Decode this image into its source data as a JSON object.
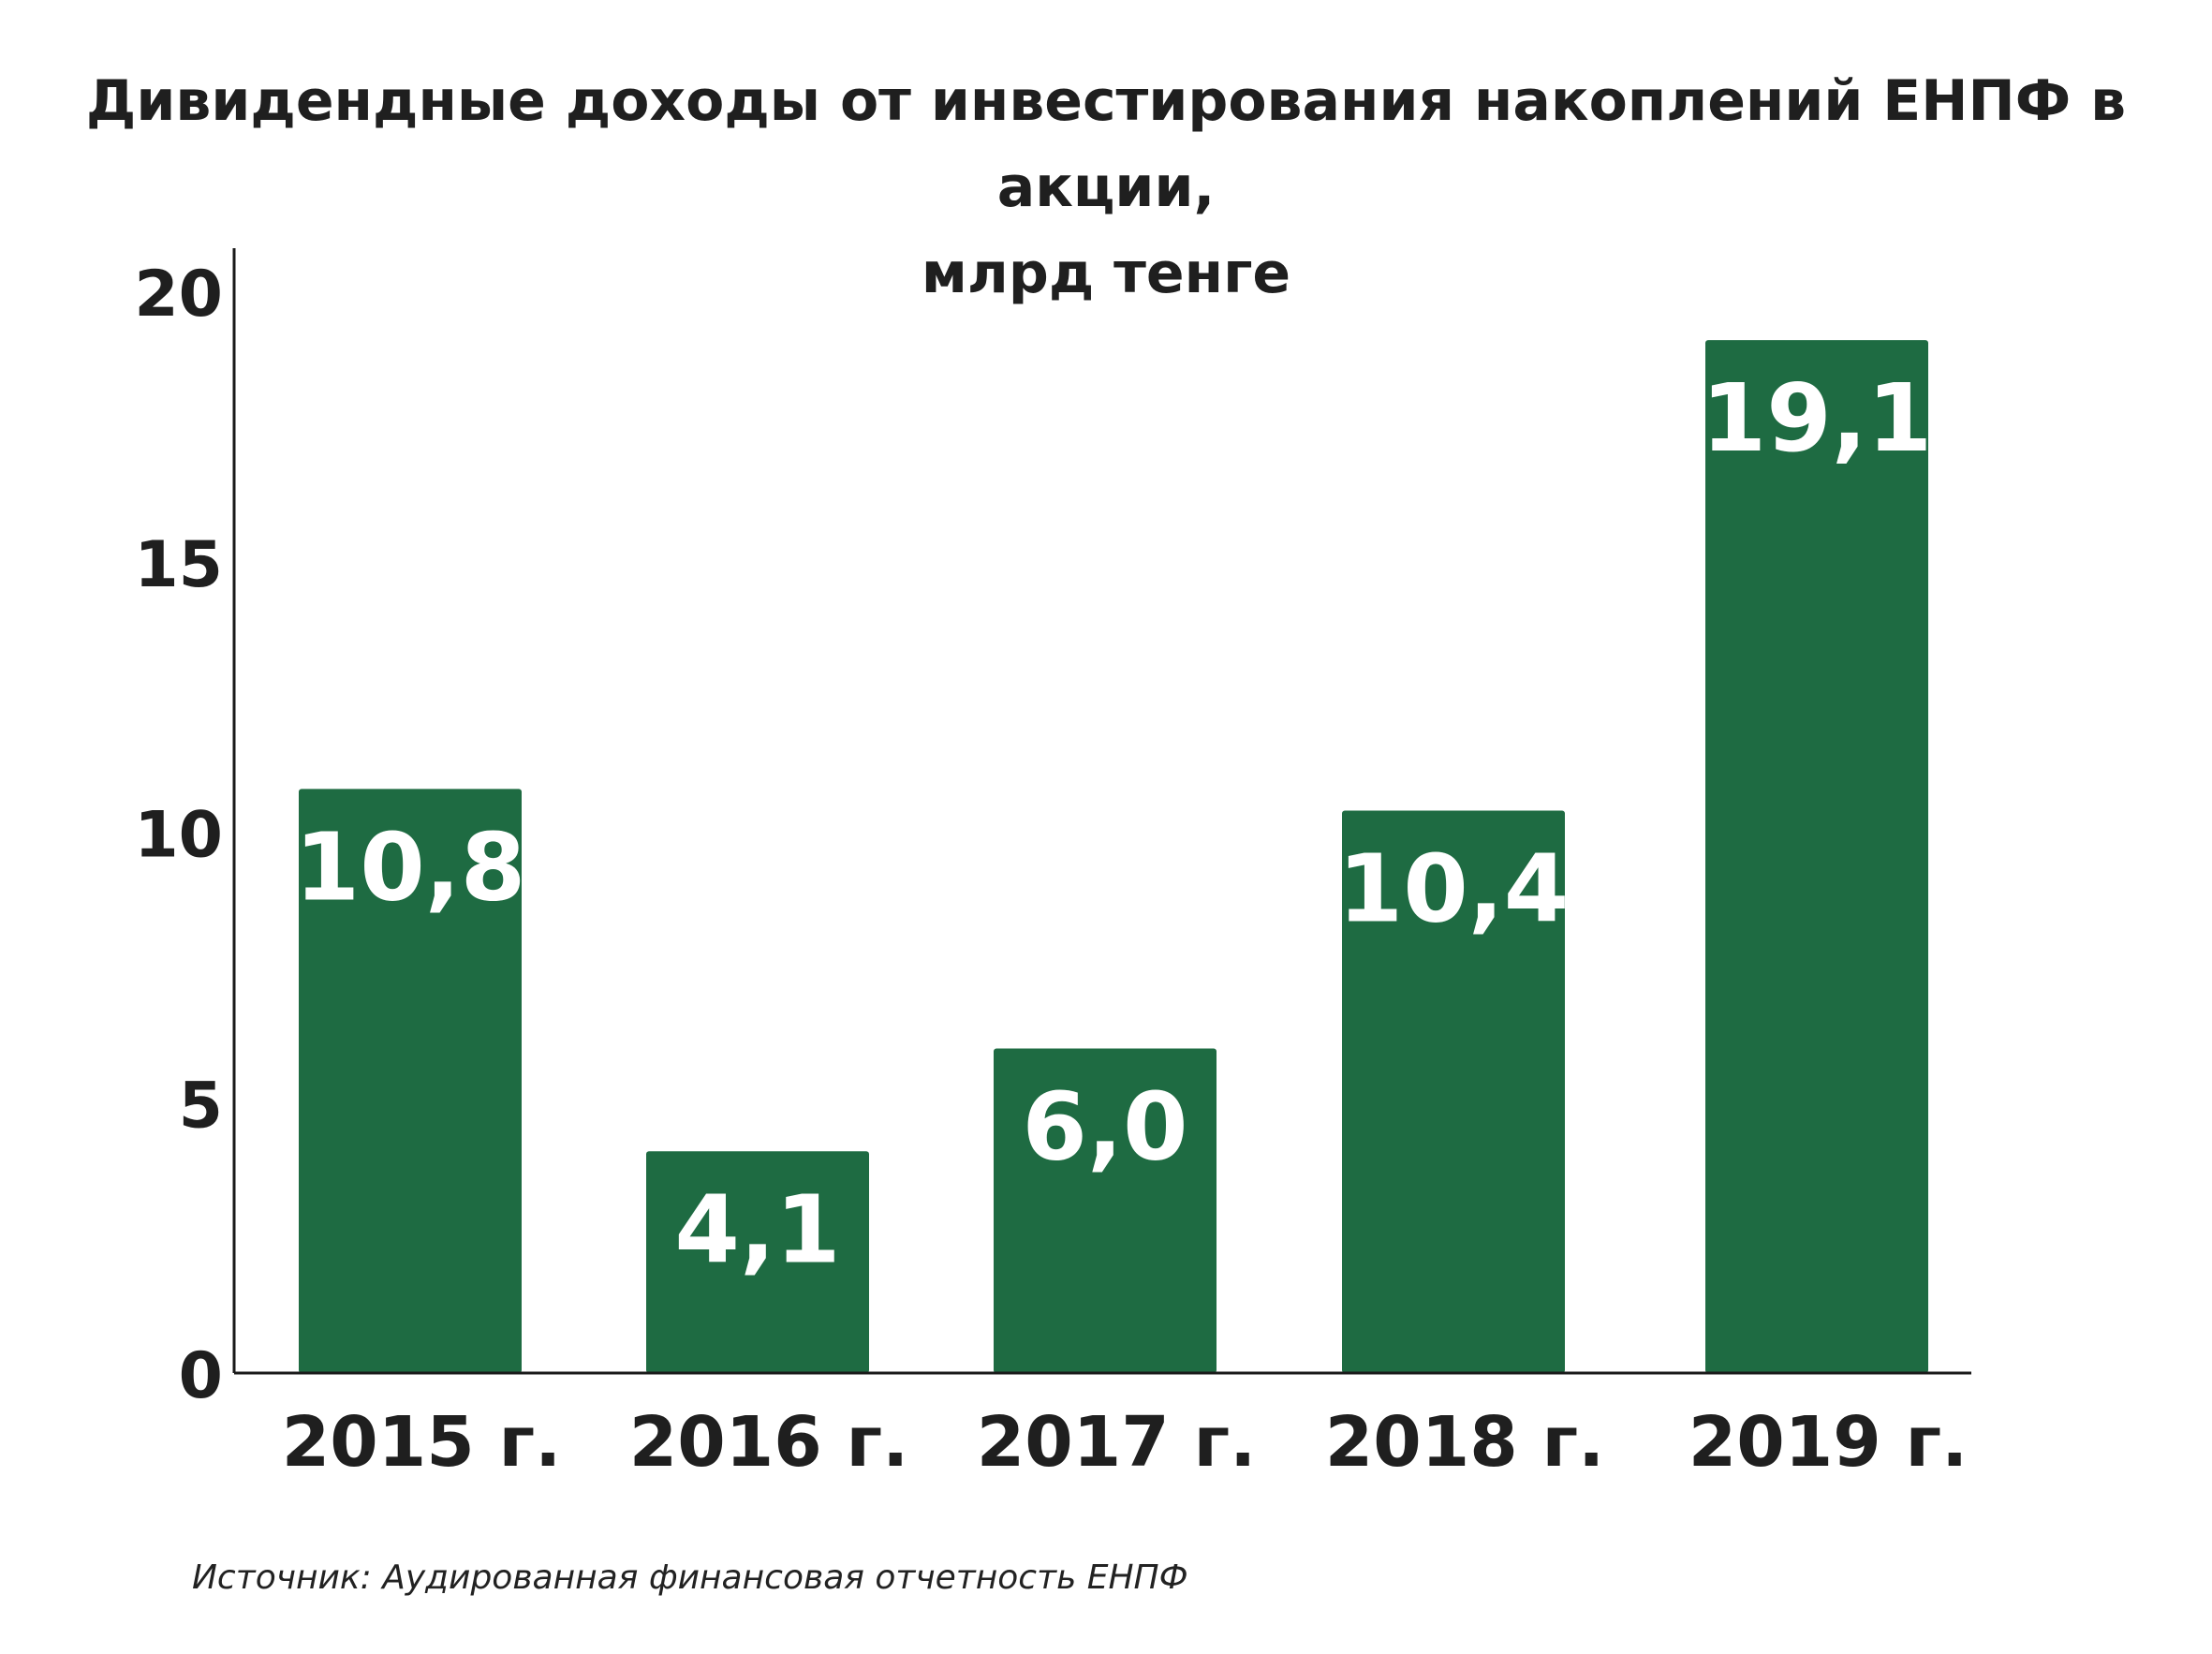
{
  "colors": {
    "bar": "#1e6b42",
    "axis": "#1a1a1a",
    "text": "#1f1f1f",
    "bar_label": "#ffffff"
  },
  "chart_data": {
    "type": "bar",
    "title_line1": "Дивидендные доходы от инвестирования накоплений ЕНПФ в акции,",
    "title_line2": "млрд тенге",
    "categories": [
      "2015 г.",
      "2016 г.",
      "2017 г.",
      "2018 г.",
      "2019 г."
    ],
    "values": [
      10.8,
      4.1,
      6.0,
      10.4,
      19.1
    ],
    "value_labels": [
      "10,8",
      "4,1",
      "6,0",
      "10,4",
      "19,1"
    ],
    "yticks": [
      0,
      5,
      10,
      15,
      20
    ],
    "ylim": [
      0,
      20.8
    ],
    "grid": false,
    "legend": "none"
  },
  "source": "Источник: Аудированная финансовая отчетность ЕНПФ"
}
